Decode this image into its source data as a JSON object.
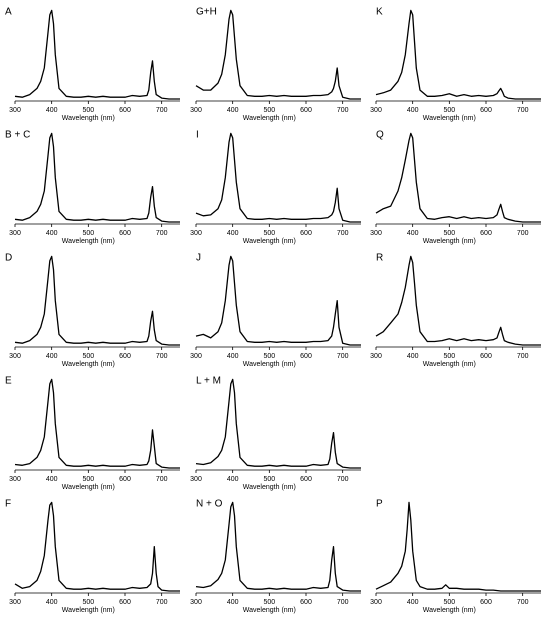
{
  "chart_data": [
    {
      "type": "line",
      "title": "A",
      "x_label": "Wavelength (nm)",
      "color": "#000000",
      "xlim": [
        300,
        750
      ],
      "ylim": [
        0,
        1.05
      ],
      "xticks": [
        300,
        400,
        500,
        600,
        700
      ],
      "x": [
        300,
        320,
        340,
        360,
        370,
        380,
        390,
        395,
        400,
        405,
        410,
        420,
        440,
        460,
        480,
        500,
        520,
        540,
        560,
        580,
        600,
        620,
        640,
        660,
        665,
        670,
        675,
        680,
        685,
        700,
        720,
        750
      ],
      "values": [
        0.03,
        0.02,
        0.05,
        0.12,
        0.2,
        0.35,
        0.75,
        0.95,
        1.0,
        0.85,
        0.5,
        0.12,
        0.03,
        0.02,
        0.02,
        0.03,
        0.02,
        0.03,
        0.02,
        0.02,
        0.02,
        0.04,
        0.03,
        0.04,
        0.1,
        0.3,
        0.43,
        0.2,
        0.05,
        0.01,
        0.0,
        0.0
      ]
    },
    {
      "type": "line",
      "title": "G+H",
      "x_label": "Wavelength (nm)",
      "color": "#000000",
      "xlim": [
        300,
        750
      ],
      "ylim": [
        0,
        1.05
      ],
      "xticks": [
        300,
        400,
        500,
        600,
        700
      ],
      "x": [
        300,
        320,
        340,
        360,
        370,
        380,
        390,
        395,
        400,
        405,
        410,
        420,
        440,
        460,
        480,
        500,
        520,
        540,
        560,
        580,
        600,
        620,
        640,
        660,
        670,
        675,
        680,
        685,
        690,
        700,
        720,
        750
      ],
      "values": [
        0.15,
        0.1,
        0.1,
        0.18,
        0.28,
        0.5,
        0.9,
        1.0,
        0.95,
        0.7,
        0.45,
        0.15,
        0.04,
        0.03,
        0.03,
        0.04,
        0.03,
        0.04,
        0.03,
        0.03,
        0.03,
        0.04,
        0.04,
        0.05,
        0.08,
        0.12,
        0.2,
        0.35,
        0.15,
        0.02,
        0.0,
        0.0
      ]
    },
    {
      "type": "line",
      "title": "K",
      "x_label": "Wavelength (nm)",
      "color": "#000000",
      "xlim": [
        300,
        750
      ],
      "ylim": [
        0,
        1.05
      ],
      "xticks": [
        300,
        400,
        500,
        600,
        700
      ],
      "x": [
        300,
        320,
        340,
        360,
        370,
        380,
        390,
        395,
        400,
        405,
        410,
        420,
        440,
        460,
        480,
        500,
        520,
        540,
        560,
        580,
        600,
        620,
        630,
        635,
        640,
        645,
        650,
        660,
        680,
        700,
        720,
        750
      ],
      "values": [
        0.05,
        0.07,
        0.1,
        0.2,
        0.3,
        0.5,
        0.85,
        1.0,
        0.95,
        0.65,
        0.35,
        0.1,
        0.03,
        0.03,
        0.04,
        0.06,
        0.03,
        0.05,
        0.03,
        0.04,
        0.03,
        0.04,
        0.06,
        0.09,
        0.12,
        0.08,
        0.03,
        0.01,
        0.0,
        0.0,
        0.0,
        0.0
      ]
    },
    {
      "type": "line",
      "title": "B + C",
      "x_label": "Wavelength (nm)",
      "color": "#000000",
      "xlim": [
        300,
        750
      ],
      "ylim": [
        0,
        1.05
      ],
      "xticks": [
        300,
        400,
        500,
        600,
        700
      ],
      "x": [
        300,
        320,
        340,
        360,
        370,
        380,
        390,
        395,
        400,
        405,
        410,
        420,
        440,
        460,
        480,
        500,
        520,
        540,
        560,
        580,
        600,
        620,
        640,
        660,
        665,
        670,
        675,
        680,
        685,
        700,
        720,
        750
      ],
      "values": [
        0.03,
        0.02,
        0.05,
        0.12,
        0.2,
        0.35,
        0.75,
        0.95,
        1.0,
        0.85,
        0.5,
        0.12,
        0.03,
        0.02,
        0.02,
        0.03,
        0.02,
        0.03,
        0.02,
        0.02,
        0.02,
        0.04,
        0.03,
        0.04,
        0.1,
        0.28,
        0.4,
        0.18,
        0.05,
        0.01,
        0.0,
        0.0
      ]
    },
    {
      "type": "line",
      "title": "I",
      "x_label": "Wavelength (nm)",
      "color": "#000000",
      "xlim": [
        300,
        750
      ],
      "ylim": [
        0,
        1.05
      ],
      "xticks": [
        300,
        400,
        500,
        600,
        700
      ],
      "x": [
        300,
        320,
        340,
        360,
        370,
        380,
        390,
        395,
        400,
        405,
        410,
        420,
        440,
        460,
        480,
        500,
        520,
        540,
        560,
        580,
        600,
        620,
        640,
        660,
        670,
        675,
        680,
        685,
        690,
        700,
        720,
        750
      ],
      "values": [
        0.1,
        0.07,
        0.08,
        0.15,
        0.25,
        0.5,
        0.9,
        1.0,
        0.95,
        0.7,
        0.45,
        0.15,
        0.04,
        0.03,
        0.03,
        0.04,
        0.03,
        0.04,
        0.03,
        0.03,
        0.03,
        0.04,
        0.04,
        0.05,
        0.08,
        0.12,
        0.22,
        0.38,
        0.15,
        0.02,
        0.0,
        0.0
      ]
    },
    {
      "type": "line",
      "title": "Q",
      "x_label": "Wavelength (nm)",
      "color": "#000000",
      "xlim": [
        300,
        750
      ],
      "ylim": [
        0,
        1.05
      ],
      "xticks": [
        300,
        400,
        500,
        600,
        700
      ],
      "x": [
        300,
        320,
        340,
        360,
        370,
        380,
        390,
        395,
        400,
        405,
        410,
        420,
        440,
        460,
        480,
        500,
        520,
        540,
        560,
        580,
        600,
        620,
        630,
        635,
        640,
        645,
        650,
        660,
        680,
        700,
        720,
        750
      ],
      "values": [
        0.1,
        0.15,
        0.18,
        0.35,
        0.5,
        0.7,
        0.92,
        1.0,
        0.95,
        0.7,
        0.45,
        0.15,
        0.04,
        0.03,
        0.05,
        0.06,
        0.04,
        0.06,
        0.04,
        0.05,
        0.04,
        0.05,
        0.08,
        0.14,
        0.2,
        0.12,
        0.05,
        0.03,
        0.01,
        0.0,
        0.0,
        0.0
      ]
    },
    {
      "type": "line",
      "title": "D",
      "x_label": "Wavelength (nm)",
      "color": "#000000",
      "xlim": [
        300,
        750
      ],
      "ylim": [
        0,
        1.05
      ],
      "xticks": [
        300,
        400,
        500,
        600,
        700
      ],
      "x": [
        300,
        320,
        340,
        360,
        370,
        380,
        390,
        395,
        400,
        405,
        410,
        420,
        440,
        460,
        480,
        500,
        520,
        540,
        560,
        580,
        600,
        620,
        640,
        660,
        665,
        670,
        675,
        680,
        685,
        700,
        720,
        750
      ],
      "values": [
        0.03,
        0.02,
        0.05,
        0.12,
        0.2,
        0.35,
        0.75,
        0.95,
        1.0,
        0.85,
        0.5,
        0.12,
        0.03,
        0.02,
        0.02,
        0.03,
        0.02,
        0.03,
        0.02,
        0.02,
        0.02,
        0.04,
        0.03,
        0.04,
        0.1,
        0.27,
        0.38,
        0.17,
        0.05,
        0.01,
        0.0,
        0.0
      ]
    },
    {
      "type": "line",
      "title": "J",
      "x_label": "Wavelength (nm)",
      "color": "#000000",
      "xlim": [
        300,
        750
      ],
      "ylim": [
        0,
        1.05
      ],
      "xticks": [
        300,
        400,
        500,
        600,
        700
      ],
      "x": [
        300,
        320,
        340,
        360,
        370,
        380,
        390,
        395,
        400,
        405,
        410,
        420,
        440,
        460,
        480,
        500,
        520,
        540,
        560,
        580,
        600,
        620,
        640,
        660,
        670,
        675,
        680,
        685,
        690,
        700,
        720,
        750
      ],
      "values": [
        0.1,
        0.12,
        0.08,
        0.15,
        0.25,
        0.5,
        0.9,
        1.0,
        0.95,
        0.7,
        0.45,
        0.15,
        0.04,
        0.03,
        0.03,
        0.04,
        0.03,
        0.04,
        0.03,
        0.03,
        0.03,
        0.04,
        0.04,
        0.05,
        0.1,
        0.2,
        0.35,
        0.5,
        0.2,
        0.02,
        0.0,
        0.0
      ]
    },
    {
      "type": "line",
      "title": "R",
      "x_label": "Wavelength (nm)",
      "color": "#000000",
      "xlim": [
        300,
        750
      ],
      "ylim": [
        0,
        1.05
      ],
      "xticks": [
        300,
        400,
        500,
        600,
        700
      ],
      "x": [
        300,
        320,
        340,
        360,
        370,
        380,
        390,
        395,
        400,
        405,
        410,
        420,
        440,
        460,
        480,
        500,
        520,
        540,
        560,
        580,
        600,
        620,
        630,
        635,
        640,
        645,
        650,
        660,
        680,
        700,
        720,
        750
      ],
      "values": [
        0.1,
        0.15,
        0.25,
        0.35,
        0.48,
        0.65,
        0.9,
        1.0,
        0.93,
        0.7,
        0.45,
        0.15,
        0.04,
        0.04,
        0.05,
        0.07,
        0.05,
        0.07,
        0.05,
        0.06,
        0.05,
        0.06,
        0.08,
        0.14,
        0.2,
        0.12,
        0.05,
        0.03,
        0.01,
        0.0,
        0.0,
        0.0
      ]
    },
    {
      "type": "line",
      "title": "E",
      "x_label": "Wavelength (nm)",
      "color": "#000000",
      "xlim": [
        300,
        750
      ],
      "ylim": [
        0,
        1.05
      ],
      "xticks": [
        300,
        400,
        500,
        600,
        700
      ],
      "x": [
        300,
        320,
        340,
        360,
        370,
        380,
        390,
        395,
        400,
        405,
        410,
        420,
        440,
        460,
        480,
        500,
        520,
        540,
        560,
        580,
        600,
        620,
        640,
        660,
        665,
        670,
        675,
        680,
        685,
        700,
        720,
        750
      ],
      "values": [
        0.04,
        0.03,
        0.05,
        0.12,
        0.2,
        0.35,
        0.75,
        0.95,
        1.0,
        0.85,
        0.5,
        0.12,
        0.03,
        0.02,
        0.02,
        0.03,
        0.02,
        0.03,
        0.02,
        0.02,
        0.02,
        0.04,
        0.03,
        0.04,
        0.08,
        0.2,
        0.43,
        0.25,
        0.05,
        0.01,
        0.0,
        0.0
      ]
    },
    {
      "type": "line",
      "title": "L + M",
      "x_label": "Wavelength (nm)",
      "color": "#000000",
      "xlim": [
        300,
        750
      ],
      "ylim": [
        0,
        1.05
      ],
      "xticks": [
        300,
        400,
        500,
        600,
        700
      ],
      "x": [
        300,
        320,
        340,
        360,
        370,
        380,
        390,
        395,
        400,
        405,
        410,
        420,
        440,
        460,
        480,
        500,
        520,
        540,
        560,
        580,
        600,
        620,
        640,
        660,
        665,
        670,
        675,
        680,
        685,
        700,
        720,
        750
      ],
      "values": [
        0.05,
        0.04,
        0.06,
        0.13,
        0.2,
        0.35,
        0.75,
        0.95,
        1.0,
        0.85,
        0.5,
        0.12,
        0.03,
        0.02,
        0.02,
        0.03,
        0.02,
        0.03,
        0.02,
        0.02,
        0.02,
        0.04,
        0.03,
        0.04,
        0.1,
        0.28,
        0.4,
        0.18,
        0.05,
        0.01,
        0.0,
        0.0
      ]
    },
    {
      "type": "line",
      "title": "F",
      "x_label": "Wavelength (nm)",
      "color": "#000000",
      "xlim": [
        300,
        750
      ],
      "ylim": [
        0,
        1.05
      ],
      "xticks": [
        300,
        400,
        500,
        600,
        700
      ],
      "x": [
        300,
        320,
        340,
        360,
        370,
        380,
        390,
        395,
        400,
        405,
        410,
        420,
        440,
        460,
        480,
        500,
        520,
        540,
        560,
        580,
        600,
        620,
        640,
        660,
        670,
        675,
        680,
        685,
        690,
        700,
        720,
        750
      ],
      "values": [
        0.08,
        0.03,
        0.05,
        0.12,
        0.22,
        0.4,
        0.8,
        0.97,
        1.0,
        0.85,
        0.5,
        0.12,
        0.03,
        0.02,
        0.02,
        0.03,
        0.02,
        0.03,
        0.02,
        0.02,
        0.02,
        0.04,
        0.03,
        0.04,
        0.08,
        0.2,
        0.5,
        0.2,
        0.05,
        0.01,
        0.0,
        0.0
      ]
    },
    {
      "type": "line",
      "title": "N + O",
      "x_label": "Wavelength (nm)",
      "color": "#000000",
      "xlim": [
        300,
        750
      ],
      "ylim": [
        0,
        1.05
      ],
      "xticks": [
        300,
        400,
        500,
        600,
        700
      ],
      "x": [
        300,
        320,
        340,
        360,
        370,
        380,
        390,
        395,
        400,
        405,
        410,
        420,
        440,
        460,
        480,
        500,
        520,
        540,
        560,
        580,
        600,
        620,
        640,
        660,
        665,
        670,
        675,
        680,
        685,
        700,
        720,
        750
      ],
      "values": [
        0.05,
        0.04,
        0.06,
        0.13,
        0.2,
        0.35,
        0.75,
        0.95,
        1.0,
        0.85,
        0.5,
        0.12,
        0.03,
        0.02,
        0.02,
        0.03,
        0.02,
        0.03,
        0.02,
        0.02,
        0.02,
        0.04,
        0.03,
        0.04,
        0.12,
        0.35,
        0.5,
        0.2,
        0.05,
        0.01,
        0.0,
        0.0
      ]
    },
    {
      "type": "line",
      "title": "P",
      "x_label": "Wavelength (nm)",
      "color": "#000000",
      "xlim": [
        300,
        750
      ],
      "ylim": [
        0,
        1.05
      ],
      "xticks": [
        300,
        400,
        500,
        600,
        700
      ],
      "x": [
        300,
        320,
        340,
        360,
        370,
        380,
        385,
        390,
        395,
        400,
        410,
        420,
        440,
        460,
        480,
        490,
        500,
        520,
        540,
        560,
        580,
        600,
        620,
        640,
        660,
        700,
        750
      ],
      "values": [
        0.02,
        0.06,
        0.1,
        0.2,
        0.28,
        0.45,
        0.7,
        1.0,
        0.8,
        0.45,
        0.12,
        0.05,
        0.02,
        0.02,
        0.03,
        0.07,
        0.03,
        0.03,
        0.02,
        0.02,
        0.02,
        0.01,
        0.01,
        0.0,
        0.0,
        0.0,
        0.0
      ]
    }
  ]
}
